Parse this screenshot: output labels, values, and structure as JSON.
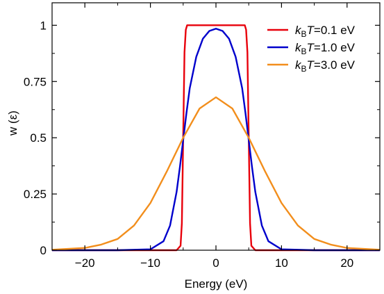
{
  "chart_data": {
    "type": "line",
    "xlabel": "Energy (eV)",
    "ylabel": "w (ε)",
    "xlim": [
      -25,
      25
    ],
    "ylim": [
      0,
      1.1
    ],
    "xticks": [
      -20,
      -10,
      0,
      10,
      20
    ],
    "xtick_labels": [
      "−20",
      "−10",
      "0",
      "10",
      "20"
    ],
    "yticks": [
      0,
      0.25,
      0.5,
      0.75,
      1
    ],
    "ytick_labels": [
      "0",
      "0.25",
      "0.5",
      "0.75",
      "1"
    ],
    "grid": false,
    "legend_position": "top-right",
    "legend_prefix": "k",
    "legend_subscript": "B",
    "legend_T": "T",
    "series": [
      {
        "name": "=0.1 eV",
        "color": "#e8000b",
        "x": [
          -25,
          -10,
          -6,
          -5.4,
          -5.2,
          -5.0,
          -4.8,
          -4.6,
          -4.4,
          -3,
          0,
          3,
          4.4,
          4.6,
          4.8,
          5.0,
          5.2,
          5.4,
          6,
          10,
          25
        ],
        "y": [
          0,
          0,
          0,
          0.02,
          0.12,
          0.5,
          0.88,
          0.98,
          1.0,
          1.0,
          1.0,
          1.0,
          1.0,
          0.98,
          0.88,
          0.5,
          0.12,
          0.02,
          0,
          0,
          0
        ]
      },
      {
        "name": "=1.0 eV",
        "color": "#0000cc",
        "x": [
          -25,
          -15,
          -10,
          -8,
          -7,
          -6,
          -5.5,
          -5,
          -4.5,
          -4,
          -3,
          -2,
          -1,
          0,
          1,
          2,
          3,
          4,
          4.5,
          5,
          5.5,
          6,
          7,
          8,
          10,
          15,
          25
        ],
        "y": [
          0,
          0,
          0.004,
          0.04,
          0.11,
          0.26,
          0.37,
          0.49,
          0.61,
          0.72,
          0.86,
          0.94,
          0.975,
          0.985,
          0.975,
          0.94,
          0.86,
          0.72,
          0.61,
          0.49,
          0.37,
          0.26,
          0.11,
          0.04,
          0.004,
          0,
          0
        ]
      },
      {
        "name": "=3.0 eV",
        "color": "#f28e1c",
        "x": [
          -25,
          -20,
          -17.5,
          -15,
          -12.5,
          -10,
          -7.5,
          -5,
          -2.5,
          0,
          2.5,
          5,
          7.5,
          10,
          12.5,
          15,
          17.5,
          20,
          25
        ],
        "y": [
          0.002,
          0.01,
          0.025,
          0.05,
          0.11,
          0.21,
          0.35,
          0.5,
          0.63,
          0.68,
          0.63,
          0.5,
          0.35,
          0.21,
          0.11,
          0.05,
          0.025,
          0.01,
          0.002
        ]
      }
    ]
  }
}
